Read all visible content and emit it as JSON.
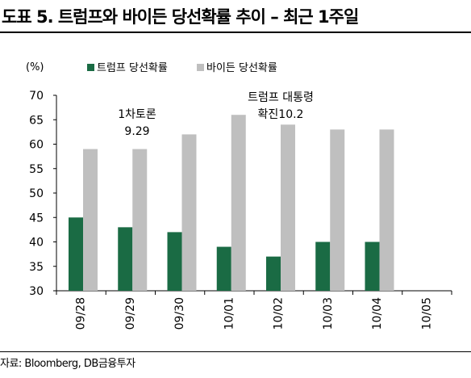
{
  "title": "도표 5. 트럼프와 바이든 당선확률 추이 – 최근 1주일",
  "source": "자료: Bloomberg, DB금융투자",
  "chart_data": {
    "type": "bar",
    "unit_label": "(%)",
    "categories": [
      "09/28",
      "09/29",
      "09/30",
      "10/01",
      "10/02",
      "10/03",
      "10/04",
      "10/05"
    ],
    "series": [
      {
        "name": "트럼프 당선확률",
        "color": "#1a6b44",
        "values": [
          45,
          43,
          42,
          39,
          37,
          40,
          40,
          null
        ]
      },
      {
        "name": "바이든 당선확률",
        "color": "#bfbfbf",
        "values": [
          59,
          59,
          62,
          66,
          64,
          63,
          63,
          null
        ]
      }
    ],
    "ylim": [
      30,
      70
    ],
    "yticks": [
      30,
      35,
      40,
      45,
      50,
      55,
      60,
      65,
      70
    ],
    "grid": false,
    "legend_position": "top-left",
    "annotations": [
      {
        "category": "09/29",
        "lines": [
          "1차토론",
          "9.29"
        ]
      },
      {
        "category": "10/02",
        "lines": [
          "트럼프 대통령",
          "확진10.2"
        ]
      }
    ]
  }
}
